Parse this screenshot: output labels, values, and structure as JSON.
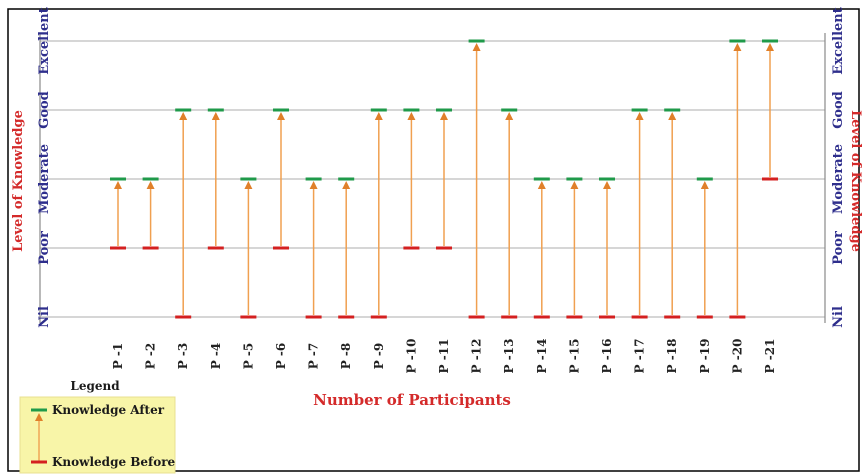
{
  "chart_data": {
    "type": "dumbbell",
    "categories": [
      "P -1",
      "P -2",
      "P -3",
      "P -4",
      "P -5",
      "P -6",
      "P -7",
      "P -8",
      "P -9",
      "P -10",
      "P -11",
      "P -12",
      "P -13",
      "P -14",
      "P -15",
      "P -16",
      "P -17",
      "P -18",
      "P -19",
      "P -20",
      "P -21"
    ],
    "y_levels": [
      "Nil",
      "Poor",
      "Moderate",
      "Good",
      "Excellent"
    ],
    "series": [
      {
        "name": "Knowledge Before",
        "color": "#d42020",
        "values": [
          1,
          1,
          0,
          1,
          0,
          1,
          0,
          0,
          0,
          1,
          1,
          0,
          0,
          0,
          0,
          0,
          0,
          0,
          0,
          0,
          2
        ]
      },
      {
        "name": "Knowledge After",
        "color": "#1f9a4a",
        "values": [
          2,
          2,
          3,
          3,
          2,
          3,
          2,
          2,
          3,
          3,
          3,
          4,
          3,
          2,
          2,
          2,
          3,
          3,
          2,
          4,
          4
        ]
      }
    ],
    "arrow_color": "#f0a050",
    "ylabel": "Level of Knowledge",
    "ylabel_right": "Level of Knowledge",
    "xlabel": "Number of Participants",
    "legend_title": "Legend",
    "legend_position": "bottom-left",
    "grid": true
  }
}
